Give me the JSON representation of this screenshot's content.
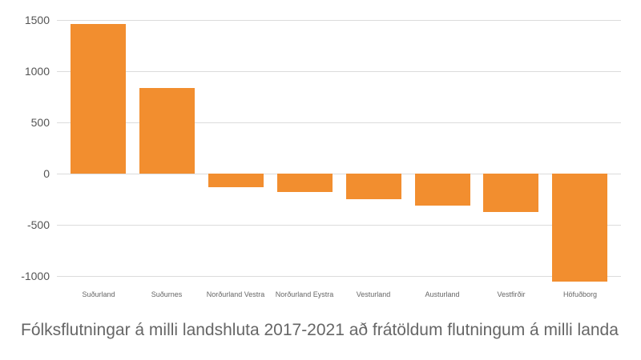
{
  "chart_data": {
    "type": "bar",
    "title": "Fólksflutningar á milli landshluta 2017-2021 að frátöldum flutningum á milli landa",
    "xlabel": "",
    "ylabel": "",
    "categories": [
      "Suðurland",
      "Suðurnes",
      "Norðurland Vestra",
      "Norðurland Eystra",
      "Vesturland",
      "Austurland",
      "Vestfirðir",
      "Höfuðborg"
    ],
    "values": [
      1460,
      835,
      -135,
      -180,
      -250,
      -310,
      -372,
      -1052
    ],
    "ylim": [
      -1000,
      1500
    ],
    "yticks": [
      1500,
      1000,
      500,
      0,
      -500,
      -1000
    ],
    "ytick_labels": [
      "1500",
      "1000",
      "500",
      "0",
      "-500",
      "-1000"
    ],
    "grid": true,
    "legend": null,
    "colors": {
      "bar": "#F28E2F",
      "grid": "#dcdcdc",
      "text": "#666666"
    }
  }
}
